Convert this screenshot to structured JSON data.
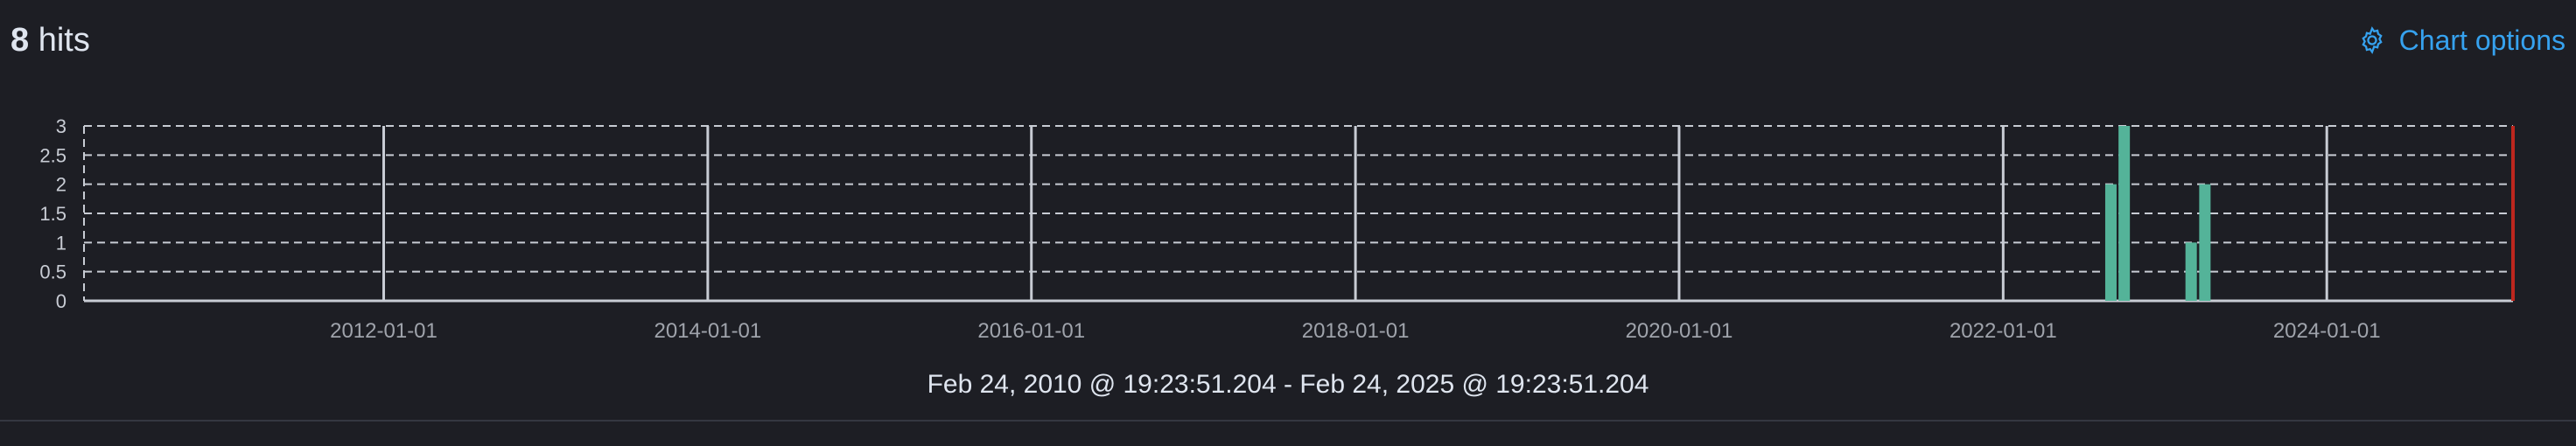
{
  "header": {
    "hits_count": "8",
    "hits_label": "hits",
    "chart_options_label": "Chart options",
    "chart_options_icon": "gear-icon",
    "accent_color": "#36a2ef"
  },
  "time_range": "Feb 24, 2010 @ 19:23:51.204 - Feb 24, 2025 @ 19:23:51.204",
  "chart_data": {
    "type": "bar",
    "title": "",
    "xlabel": "",
    "ylabel": "",
    "x_axis": {
      "type": "date",
      "range": [
        "2010-02-24",
        "2025-02-24"
      ],
      "tick_labels": [
        "2012-01-01",
        "2014-01-01",
        "2016-01-01",
        "2018-01-01",
        "2020-01-01",
        "2022-01-01",
        "2024-01-01"
      ]
    },
    "y_axis": {
      "range": [
        0,
        3
      ],
      "tick_labels": [
        "0",
        "0.5",
        "1",
        "1.5",
        "2",
        "2.5",
        "3"
      ]
    },
    "grid": true,
    "bar_color": "#54b399",
    "current_time_marker": {
      "x": "2025-02-24",
      "color": "#bd271e"
    },
    "points": [
      {
        "x": "2022-09-01",
        "y": 2
      },
      {
        "x": "2022-10-01",
        "y": 3
      },
      {
        "x": "2023-03-01",
        "y": 1
      },
      {
        "x": "2023-04-01",
        "y": 2
      }
    ]
  }
}
